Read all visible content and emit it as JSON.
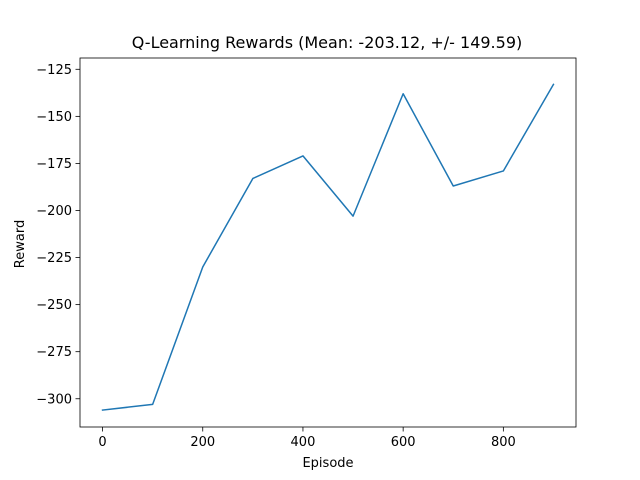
{
  "chart_data": {
    "type": "line",
    "title": "Q-Learning Rewards (Mean: -203.12, +/- 149.59)",
    "xlabel": "Episode",
    "ylabel": "Reward",
    "xlim": [
      -45,
      945
    ],
    "ylim": [
      -315,
      -119
    ],
    "xticks": [
      0,
      200,
      400,
      600,
      800
    ],
    "xtick_labels": [
      "0",
      "200",
      "400",
      "600",
      "800"
    ],
    "yticks": [
      -300,
      -275,
      -250,
      -225,
      -200,
      -175,
      -150,
      -125
    ],
    "ytick_labels": [
      "−300",
      "−275",
      "−250",
      "−225",
      "−200",
      "−175",
      "−150",
      "−125"
    ],
    "grid": false,
    "series": [
      {
        "color": "#1f77b4",
        "x": [
          0,
          100,
          200,
          300,
          400,
          500,
          600,
          700,
          800,
          900
        ],
        "y": [
          -306,
          -303,
          -230,
          -183,
          -171,
          -203,
          -138,
          -187,
          -179,
          -133
        ]
      }
    ]
  }
}
